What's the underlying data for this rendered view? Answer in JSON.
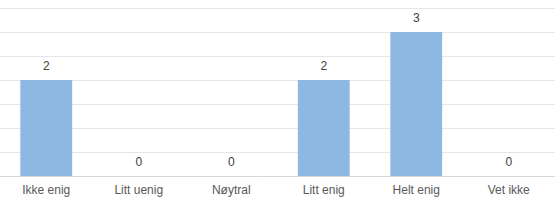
{
  "chart_data": {
    "type": "bar",
    "categories": [
      "Ikke enig",
      "Litt uenig",
      "Nøytral",
      "Litt enig",
      "Helt enig",
      "Vet ikke"
    ],
    "values": [
      2,
      0,
      0,
      2,
      3,
      0
    ],
    "color": "#8db8e2",
    "ylim": [
      0,
      3.5
    ],
    "yticks": [
      0,
      0.5,
      1,
      1.5,
      2,
      2.5,
      3,
      3.5
    ],
    "grid": true,
    "data_labels": true,
    "tick_labels": "x"
  }
}
